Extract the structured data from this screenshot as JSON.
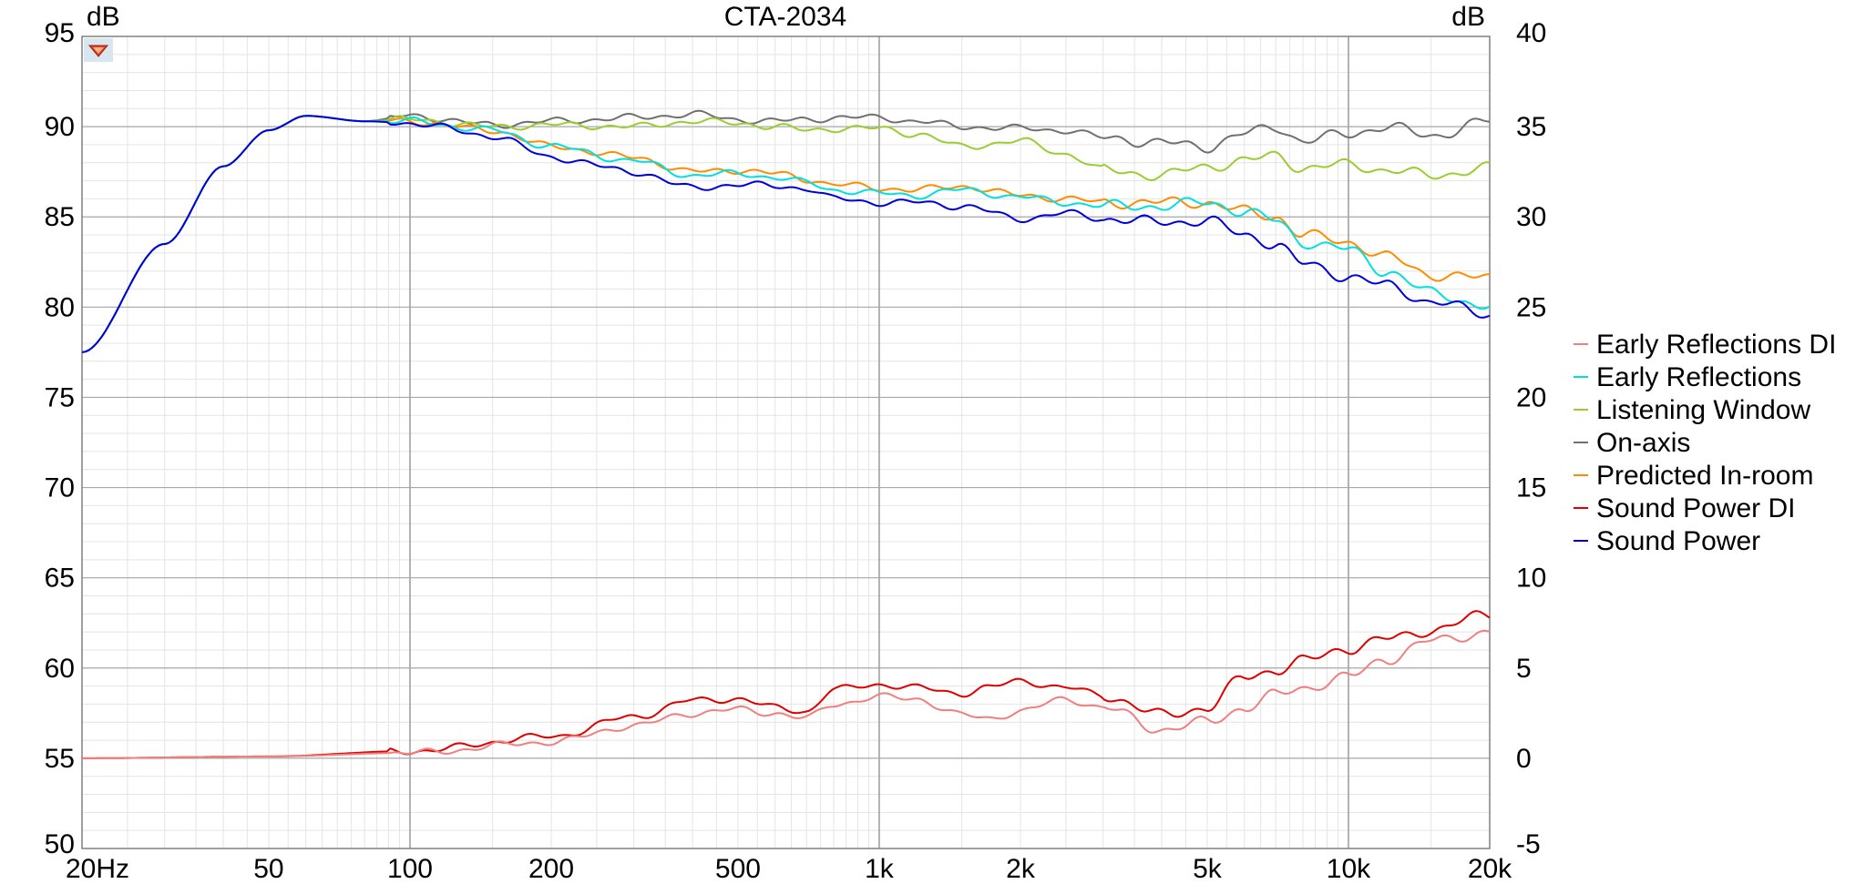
{
  "chart_data": {
    "type": "line",
    "title": "CTA-2034",
    "left_unit": "dB",
    "right_unit": "dB",
    "x_scale": "log",
    "xlim": [
      20,
      20000
    ],
    "ylim_left": [
      50,
      95
    ],
    "ylim_right": [
      -5,
      40
    ],
    "x_ticks": [
      {
        "v": 20,
        "label": "20Hz"
      },
      {
        "v": 50,
        "label": "50"
      },
      {
        "v": 100,
        "label": "100"
      },
      {
        "v": 200,
        "label": "200"
      },
      {
        "v": 500,
        "label": "500"
      },
      {
        "v": 1000,
        "label": "1k"
      },
      {
        "v": 2000,
        "label": "2k"
      },
      {
        "v": 5000,
        "label": "5k"
      },
      {
        "v": 10000,
        "label": "10k"
      },
      {
        "v": 20000,
        "label": "20k"
      }
    ],
    "y_ticks_left": [
      "95",
      "90",
      "85",
      "80",
      "75",
      "70",
      "65",
      "60",
      "55",
      "50"
    ],
    "y_ticks_right": [
      "40",
      "35",
      "30",
      "25",
      "20",
      "15",
      "10",
      "5",
      "0",
      "-5"
    ],
    "grid": true,
    "legend_position": "right",
    "series": [
      {
        "name": "Early Reflections DI",
        "color": "#f08080",
        "axis": "right",
        "x": [
          20,
          50,
          100,
          200,
          300,
          400,
          500,
          600,
          700,
          800,
          1000,
          1200,
          1500,
          1700,
          2000,
          2500,
          3000,
          4000,
          5000,
          6000,
          7000,
          8000,
          10000,
          12000,
          15000,
          20000
        ],
        "y": [
          0,
          0.1,
          0.3,
          0.9,
          1.8,
          2.5,
          2.7,
          2.5,
          2.2,
          3.0,
          3.4,
          3.3,
          2.4,
          2.2,
          2.6,
          3.3,
          2.8,
          1.6,
          2.0,
          2.8,
          3.5,
          3.9,
          4.5,
          5.5,
          6.5,
          7.0
        ]
      },
      {
        "name": "Early Reflections",
        "color": "#00e0e0",
        "axis": "left",
        "x": [
          20,
          30,
          40,
          50,
          60,
          80,
          100,
          150,
          200,
          300,
          400,
          500,
          600,
          700,
          800,
          1000,
          1200,
          1500,
          2000,
          2500,
          3000,
          4000,
          5000,
          6000,
          7000,
          8000,
          10000,
          12000,
          15000,
          20000
        ],
        "y": [
          77.5,
          83.5,
          87.8,
          89.8,
          90.6,
          90.3,
          90.3,
          89.8,
          88.9,
          88.1,
          87.3,
          87.4,
          87.2,
          86.9,
          86.5,
          86.3,
          86.2,
          86.5,
          86.1,
          85.8,
          85.6,
          85.6,
          85.8,
          85.3,
          84.8,
          83.6,
          83.2,
          82.0,
          80.8,
          80.0
        ]
      },
      {
        "name": "Listening Window",
        "color": "#9acd32",
        "axis": "left",
        "x": [
          20,
          30,
          40,
          50,
          60,
          80,
          100,
          150,
          200,
          300,
          400,
          500,
          600,
          700,
          800,
          1000,
          1200,
          1500,
          2000,
          2500,
          3000,
          4000,
          5000,
          6000,
          7000,
          8000,
          10000,
          12000,
          15000,
          20000
        ],
        "y": [
          77.5,
          83.5,
          87.8,
          89.8,
          90.6,
          90.3,
          90.4,
          90.0,
          90.1,
          90.0,
          90.3,
          90.2,
          90.0,
          89.8,
          89.9,
          89.9,
          89.6,
          88.9,
          89.2,
          88.5,
          87.6,
          87.3,
          87.8,
          88.1,
          88.4,
          87.7,
          87.9,
          87.6,
          87.3,
          87.7
        ]
      },
      {
        "name": "On-axis",
        "color": "#707070",
        "axis": "left",
        "x": [
          20,
          30,
          40,
          50,
          60,
          80,
          100,
          150,
          200,
          300,
          400,
          500,
          600,
          700,
          800,
          1000,
          1200,
          1500,
          2000,
          2500,
          3000,
          4000,
          5000,
          6000,
          7000,
          8000,
          10000,
          12000,
          15000,
          20000
        ],
        "y": [
          77.5,
          83.5,
          87.8,
          89.8,
          90.6,
          90.3,
          90.6,
          90.1,
          90.3,
          90.5,
          90.7,
          90.4,
          90.3,
          90.4,
          90.5,
          90.5,
          90.3,
          90.0,
          89.9,
          89.8,
          89.4,
          89.1,
          88.9,
          89.6,
          90.0,
          89.2,
          89.6,
          90.0,
          89.5,
          90.3
        ]
      },
      {
        "name": "Predicted In-room",
        "color": "#ff8c00",
        "axis": "left",
        "x": [
          20,
          30,
          40,
          50,
          60,
          80,
          100,
          150,
          200,
          300,
          400,
          500,
          600,
          700,
          800,
          1000,
          1200,
          1500,
          2000,
          2500,
          3000,
          4000,
          5000,
          6000,
          7000,
          8000,
          10000,
          12000,
          15000,
          20000
        ],
        "y": [
          77.5,
          83.5,
          87.8,
          89.8,
          90.6,
          90.3,
          90.3,
          89.8,
          88.9,
          88.3,
          87.5,
          87.6,
          87.4,
          87.1,
          86.8,
          86.6,
          86.5,
          86.7,
          86.2,
          86.0,
          85.8,
          85.8,
          85.8,
          85.3,
          85.0,
          84.0,
          83.6,
          82.8,
          81.8,
          81.6
        ]
      },
      {
        "name": "Sound Power DI",
        "color": "#e00000",
        "axis": "right",
        "x": [
          20,
          50,
          100,
          200,
          300,
          400,
          500,
          600,
          700,
          800,
          1000,
          1200,
          1500,
          1700,
          2000,
          2500,
          3000,
          4000,
          5000,
          6000,
          7000,
          8000,
          10000,
          12000,
          15000,
          20000
        ],
        "y": [
          0,
          0.1,
          0.4,
          1.2,
          2.3,
          3.2,
          3.3,
          2.8,
          2.6,
          3.8,
          4.1,
          3.9,
          3.6,
          3.9,
          4.3,
          3.9,
          3.5,
          2.4,
          2.8,
          4.5,
          4.9,
          5.4,
          6.1,
          6.6,
          7.1,
          8.0
        ]
      },
      {
        "name": "Sound Power",
        "color": "#0000dd",
        "axis": "left",
        "x": [
          20,
          30,
          40,
          50,
          60,
          80,
          100,
          150,
          200,
          300,
          400,
          500,
          600,
          700,
          800,
          1000,
          1200,
          1500,
          2000,
          2500,
          3000,
          4000,
          5000,
          6000,
          7000,
          8000,
          10000,
          12000,
          15000,
          20000
        ],
        "y": [
          77.5,
          83.5,
          87.8,
          89.8,
          90.6,
          90.3,
          90.2,
          89.5,
          88.3,
          87.5,
          86.6,
          86.8,
          86.7,
          86.6,
          86.0,
          85.8,
          85.8,
          85.6,
          84.9,
          85.2,
          84.9,
          84.7,
          84.8,
          84.0,
          83.5,
          82.4,
          81.7,
          81.2,
          80.3,
          79.6
        ]
      }
    ]
  }
}
